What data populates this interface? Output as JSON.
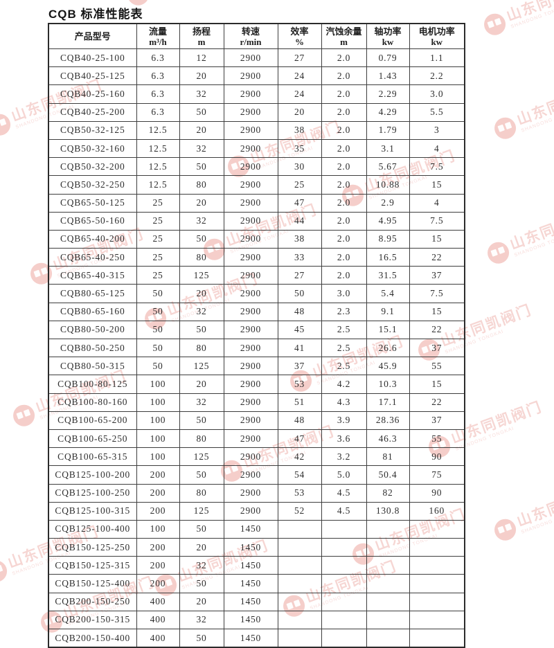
{
  "title": "CQB 标准性能表",
  "watermark": {
    "text": "山东同凯阀门",
    "subtext": "SHANDONG TONGKAI",
    "color": "#dd6156"
  },
  "table": {
    "columns": [
      {
        "key": "model",
        "label": "产品型号",
        "unit": ""
      },
      {
        "key": "flow",
        "label": "流量",
        "unit": "m³/h"
      },
      {
        "key": "head",
        "label": "扬程",
        "unit": "m"
      },
      {
        "key": "speed",
        "label": "转速",
        "unit": "r/min"
      },
      {
        "key": "efficiency",
        "label": "效率",
        "unit": "%"
      },
      {
        "key": "npsh",
        "label": "汽蚀余量",
        "unit": "m"
      },
      {
        "key": "shaft_power",
        "label": "轴功率",
        "unit": "kw"
      },
      {
        "key": "motor_power",
        "label": "电机功率",
        "unit": "kw"
      }
    ],
    "rows": [
      [
        "CQB40-25-100",
        "6.3",
        "12",
        "2900",
        "27",
        "2.0",
        "0.79",
        "1.1"
      ],
      [
        "CQB40-25-125",
        "6.3",
        "20",
        "2900",
        "24",
        "2.0",
        "1.43",
        "2.2"
      ],
      [
        "CQB40-25-160",
        "6.3",
        "32",
        "2900",
        "24",
        "2.0",
        "2.29",
        "3.0"
      ],
      [
        "CQB40-25-200",
        "6.3",
        "50",
        "2900",
        "20",
        "2.0",
        "4.29",
        "5.5"
      ],
      [
        "CQB50-32-125",
        "12.5",
        "20",
        "2900",
        "38",
        "2.0",
        "1.79",
        "3"
      ],
      [
        "CQB50-32-160",
        "12.5",
        "32",
        "2900",
        "35",
        "2.0",
        "3.1",
        "4"
      ],
      [
        "CQB50-32-200",
        "12.5",
        "50",
        "2900",
        "30",
        "2.0",
        "5.67",
        "7.5"
      ],
      [
        "CQB50-32-250",
        "12.5",
        "80",
        "2900",
        "25",
        "2.0",
        "10.88",
        "15"
      ],
      [
        "CQB65-50-125",
        "25",
        "20",
        "2900",
        "47",
        "2.0",
        "2.9",
        "4"
      ],
      [
        "CQB65-50-160",
        "25",
        "32",
        "2900",
        "44",
        "2.0",
        "4.95",
        "7.5"
      ],
      [
        "CQB65-40-200",
        "25",
        "50",
        "2900",
        "38",
        "2.0",
        "8.95",
        "15"
      ],
      [
        "CQB65-40-250",
        "25",
        "80",
        "2900",
        "33",
        "2.0",
        "16.5",
        "22"
      ],
      [
        "CQB65-40-315",
        "25",
        "125",
        "2900",
        "27",
        "2.0",
        "31.5",
        "37"
      ],
      [
        "CQB80-65-125",
        "50",
        "20",
        "2900",
        "50",
        "3.0",
        "5.4",
        "7.5"
      ],
      [
        "CQB80-65-160",
        "50",
        "32",
        "2900",
        "48",
        "2.3",
        "9.1",
        "15"
      ],
      [
        "CQB80-50-200",
        "50",
        "50",
        "2900",
        "45",
        "2.5",
        "15.1",
        "22"
      ],
      [
        "CQB80-50-250",
        "50",
        "80",
        "2900",
        "41",
        "2.5",
        "26.6",
        "37"
      ],
      [
        "CQB80-50-315",
        "50",
        "125",
        "2900",
        "37",
        "2.5",
        "45.9",
        "55"
      ],
      [
        "CQB100-80-125",
        "100",
        "20",
        "2900",
        "53",
        "4.2",
        "10.3",
        "15"
      ],
      [
        "CQB100-80-160",
        "100",
        "32",
        "2900",
        "51",
        "4.3",
        "17.1",
        "22"
      ],
      [
        "CQB100-65-200",
        "100",
        "50",
        "2900",
        "48",
        "3.9",
        "28.36",
        "37"
      ],
      [
        "CQB100-65-250",
        "100",
        "80",
        "2900",
        "47",
        "3.6",
        "46.3",
        "55"
      ],
      [
        "CQB100-65-315",
        "100",
        "125",
        "2900",
        "42",
        "3.2",
        "81",
        "90"
      ],
      [
        "CQB125-100-200",
        "200",
        "50",
        "2900",
        "54",
        "5.0",
        "50.4",
        "75"
      ],
      [
        "CQB125-100-250",
        "200",
        "80",
        "2900",
        "53",
        "4.5",
        "82",
        "90"
      ],
      [
        "CQB125-100-315",
        "200",
        "125",
        "2900",
        "52",
        "4.5",
        "130.8",
        "160"
      ],
      [
        "CQB125-100-400",
        "100",
        "50",
        "1450",
        "",
        "",
        "",
        ""
      ],
      [
        "CQB150-125-250",
        "200",
        "20",
        "1450",
        "",
        "",
        "",
        ""
      ],
      [
        "CQB150-125-315",
        "200",
        "32",
        "1450",
        "",
        "",
        "",
        ""
      ],
      [
        "CQB150-125-400",
        "200",
        "50",
        "1450",
        "",
        "",
        "",
        ""
      ],
      [
        "CQB200-150-250",
        "400",
        "20",
        "1450",
        "",
        "",
        "",
        ""
      ],
      [
        "CQB200-150-315",
        "400",
        "32",
        "1450",
        "",
        "",
        "",
        ""
      ],
      [
        "CQB200-150-400",
        "400",
        "50",
        "1450",
        "",
        "",
        "",
        ""
      ]
    ]
  }
}
